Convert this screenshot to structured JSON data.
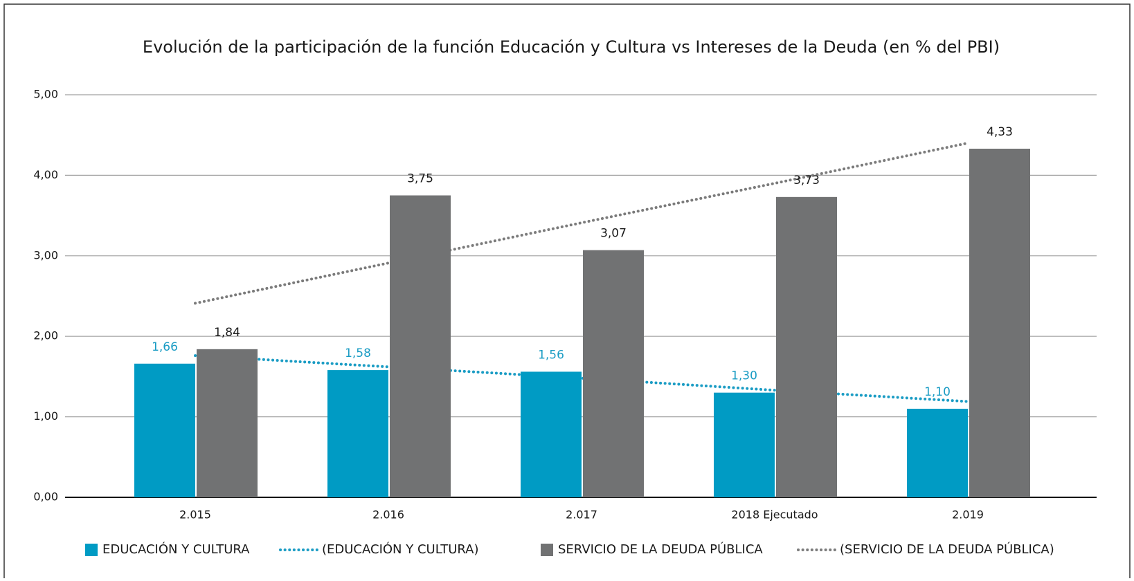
{
  "chart_data": {
    "type": "bar",
    "title": "Evolución de la participación de la función Educación y Cultura vs Intereses de la Deuda (en % del PBI)",
    "categories": [
      "2.015",
      "2.016",
      "2.017",
      "2018  Ejecutado",
      "2.019"
    ],
    "series": [
      {
        "name": "EDUCACIÓN Y CULTURA",
        "type": "bar",
        "color": "#009bc4",
        "label_color": "#1a9cc4",
        "values": [
          1.66,
          1.58,
          1.56,
          1.3,
          1.1
        ],
        "value_labels": [
          "1,66",
          "1,58",
          "1,56",
          "1,30",
          "1,10"
        ]
      },
      {
        "name": "(EDUCACIÓN Y CULTURA)",
        "type": "line",
        "color": "#1a9cc4",
        "values": [
          1.76,
          1.62,
          1.48,
          1.33,
          1.19
        ]
      },
      {
        "name": "SERVICIO DE LA DEUDA PÚBLICA",
        "type": "bar",
        "color": "#717273",
        "label_color": "#1a1a1a",
        "values": [
          1.84,
          3.75,
          3.07,
          3.73,
          4.33
        ],
        "value_labels": [
          "1,84",
          "3,75",
          "3,07",
          "3,73",
          "4,33"
        ]
      },
      {
        "name": "(SERVICIO DE LA DEUDA PÚBLICA)",
        "type": "line",
        "color": "#7b7b7b",
        "values": [
          2.41,
          2.91,
          3.41,
          3.9,
          4.4
        ]
      }
    ],
    "ylim": [
      0,
      5
    ],
    "yticks": [
      {
        "value": 0,
        "label": "0,00"
      },
      {
        "value": 1,
        "label": "1,00"
      },
      {
        "value": 2,
        "label": "2,00"
      },
      {
        "value": 3,
        "label": "3,00"
      },
      {
        "value": 4,
        "label": "4,00"
      },
      {
        "value": 5,
        "label": "5,00"
      }
    ],
    "grid": true,
    "legend": "bottom"
  }
}
